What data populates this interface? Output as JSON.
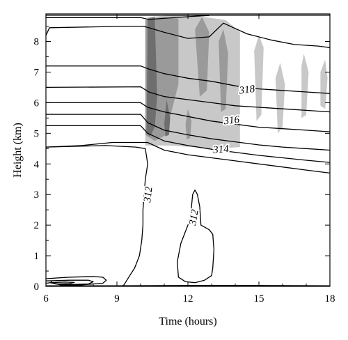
{
  "chart_data": {
    "type": "contour",
    "xlabel": "Time (hours)",
    "ylabel": "Height (km)",
    "xlim": [
      6,
      18
    ],
    "ylim": [
      0,
      8.9
    ],
    "xticks": [
      6,
      9,
      12,
      15,
      18
    ],
    "yticks": [
      0,
      1,
      2,
      3,
      4,
      5,
      6,
      7,
      8
    ],
    "colors": {
      "light_shade": "#c8c8c8",
      "mid_shade": "#9a9a9a",
      "dark_shade": "#6e6e6e",
      "line": "#000000"
    },
    "shaded_regions": [
      {
        "level": "light",
        "points": [
          [
            10.2,
            4.85
          ],
          [
            10.3,
            8.8
          ],
          [
            11.2,
            8.85
          ],
          [
            12.2,
            8.85
          ],
          [
            13.6,
            8.7
          ],
          [
            14.2,
            8.3
          ],
          [
            14.2,
            4.55
          ],
          [
            13.2,
            4.5
          ],
          [
            12.2,
            4.55
          ],
          [
            11.2,
            4.6
          ],
          [
            10.2,
            4.6
          ]
        ]
      },
      {
        "level": "light",
        "points": [
          [
            14.8,
            7.7
          ],
          [
            15.0,
            8.2
          ],
          [
            15.2,
            7.8
          ],
          [
            15.1,
            5.6
          ],
          [
            14.9,
            5.4
          ]
        ]
      },
      {
        "level": "light",
        "points": [
          [
            15.7,
            6.8
          ],
          [
            15.9,
            7.3
          ],
          [
            16.1,
            6.6
          ],
          [
            16.0,
            5.2
          ],
          [
            15.8,
            5.0
          ]
        ]
      },
      {
        "level": "light",
        "points": [
          [
            16.8,
            7.2
          ],
          [
            16.9,
            7.6
          ],
          [
            17.1,
            7.0
          ],
          [
            17.0,
            5.6
          ],
          [
            16.8,
            5.5
          ]
        ]
      },
      {
        "level": "light",
        "points": [
          [
            17.6,
            7.0
          ],
          [
            17.8,
            7.4
          ],
          [
            17.9,
            6.8
          ],
          [
            17.8,
            5.8
          ],
          [
            17.6,
            5.9
          ]
        ]
      },
      {
        "level": "mid",
        "points": [
          [
            10.2,
            4.95
          ],
          [
            10.2,
            8.7
          ],
          [
            10.9,
            8.8
          ],
          [
            11.6,
            8.75
          ],
          [
            11.6,
            6.6
          ],
          [
            11.2,
            5.4
          ],
          [
            11.1,
            4.95
          ],
          [
            10.6,
            4.75
          ]
        ]
      },
      {
        "level": "mid",
        "points": [
          [
            12.3,
            8.4
          ],
          [
            12.6,
            8.8
          ],
          [
            12.9,
            8.3
          ],
          [
            12.8,
            6.4
          ],
          [
            12.5,
            6.2
          ]
        ]
      },
      {
        "level": "mid",
        "points": [
          [
            13.3,
            8.0
          ],
          [
            13.5,
            8.4
          ],
          [
            13.7,
            7.6
          ],
          [
            13.6,
            5.8
          ],
          [
            13.4,
            5.7
          ]
        ]
      },
      {
        "level": "mid",
        "points": [
          [
            11.9,
            5.3
          ],
          [
            12.0,
            5.8
          ],
          [
            12.15,
            5.4
          ],
          [
            12.1,
            4.85
          ],
          [
            11.95,
            4.8
          ]
        ]
      },
      {
        "level": "dark",
        "points": [
          [
            10.25,
            5.0
          ],
          [
            10.3,
            8.75
          ],
          [
            10.6,
            8.8
          ],
          [
            10.7,
            6.2
          ],
          [
            10.6,
            5.2
          ],
          [
            10.4,
            4.9
          ]
        ]
      },
      {
        "level": "dark",
        "points": [
          [
            11.0,
            5.3
          ],
          [
            11.1,
            6.1
          ],
          [
            11.25,
            5.5
          ],
          [
            11.2,
            4.95
          ],
          [
            11.05,
            4.9
          ]
        ]
      }
    ],
    "contours": [
      {
        "label": "",
        "points": [
          [
            6,
            8.86
          ],
          [
            10.0,
            8.86
          ],
          [
            10.25,
            8.86
          ],
          [
            12.0,
            8.86
          ],
          [
            14.0,
            8.86
          ],
          [
            16.0,
            8.86
          ],
          [
            18,
            8.86
          ]
        ]
      },
      {
        "label": "",
        "points": [
          [
            6,
            8.78
          ],
          [
            10.0,
            8.78
          ],
          [
            10.35,
            8.72
          ],
          [
            12.2,
            8.82
          ],
          [
            12.9,
            8.85
          ]
        ]
      },
      {
        "label": "",
        "points": [
          [
            6,
            8.2
          ],
          [
            6.15,
            8.45
          ],
          [
            9.5,
            8.5
          ],
          [
            10.1,
            8.5
          ],
          [
            10.35,
            8.45
          ],
          [
            11.0,
            8.3
          ],
          [
            12.0,
            8.1
          ],
          [
            12.9,
            8.15
          ],
          [
            13.5,
            8.6
          ],
          [
            14.5,
            8.25
          ],
          [
            15.5,
            8.05
          ],
          [
            16.5,
            7.9
          ],
          [
            17.5,
            7.85
          ],
          [
            18,
            7.8
          ]
        ]
      },
      {
        "label": "",
        "points": [
          [
            6,
            7.2
          ],
          [
            10.0,
            7.2
          ],
          [
            10.35,
            7.1
          ],
          [
            11.0,
            6.95
          ],
          [
            12.0,
            6.8
          ],
          [
            13.0,
            6.7
          ],
          [
            14.0,
            6.55
          ],
          [
            15.0,
            6.45
          ],
          [
            16.0,
            6.4
          ],
          [
            17.0,
            6.35
          ],
          [
            18,
            6.3
          ]
        ]
      },
      {
        "label": "318",
        "points": [
          [
            6,
            6.5
          ],
          [
            10.0,
            6.52
          ],
          [
            10.35,
            6.35
          ],
          [
            11.0,
            6.2
          ],
          [
            12.0,
            6.1
          ],
          [
            13.0,
            6.0
          ],
          [
            14.0,
            5.9
          ],
          [
            15.0,
            5.85
          ],
          [
            16.0,
            5.8
          ],
          [
            17.0,
            5.75
          ],
          [
            18,
            5.7
          ]
        ]
      },
      {
        "label": "",
        "points": [
          [
            6,
            6.0
          ],
          [
            10.0,
            6.0
          ],
          [
            10.3,
            5.85
          ],
          [
            11.0,
            5.7
          ],
          [
            12.0,
            5.55
          ],
          [
            13.0,
            5.4
          ],
          [
            14.0,
            5.3
          ],
          [
            15.0,
            5.2
          ],
          [
            16.0,
            5.15
          ],
          [
            17.0,
            5.1
          ],
          [
            18,
            5.05
          ]
        ]
      },
      {
        "label": "316",
        "points": [
          [
            6,
            5.62
          ],
          [
            10.0,
            5.62
          ],
          [
            10.3,
            5.35
          ],
          [
            11.0,
            5.1
          ],
          [
            12.0,
            4.95
          ],
          [
            13.0,
            4.82
          ],
          [
            14.0,
            4.72
          ],
          [
            15.0,
            4.62
          ],
          [
            16.0,
            4.55
          ],
          [
            17.0,
            4.5
          ],
          [
            18,
            4.45
          ]
        ]
      },
      {
        "label": "314",
        "points": [
          [
            6,
            5.25
          ],
          [
            10.0,
            5.25
          ],
          [
            10.3,
            5.0
          ],
          [
            11.0,
            4.75
          ],
          [
            12.0,
            4.6
          ],
          [
            13.0,
            4.48
          ],
          [
            14.0,
            4.38
          ],
          [
            15.0,
            4.28
          ],
          [
            16.0,
            4.2
          ],
          [
            17.0,
            4.12
          ],
          [
            18,
            4.05
          ]
        ]
      },
      {
        "label": "",
        "points": [
          [
            6,
            4.55
          ],
          [
            7.5,
            4.6
          ],
          [
            8.8,
            4.7
          ],
          [
            9.4,
            4.7
          ],
          [
            10.3,
            4.7
          ],
          [
            11.0,
            4.45
          ],
          [
            12.0,
            4.3
          ],
          [
            13.0,
            4.2
          ],
          [
            14.0,
            4.1
          ],
          [
            15.0,
            4.0
          ],
          [
            16.0,
            3.9
          ],
          [
            17.0,
            3.8
          ],
          [
            18,
            3.7
          ]
        ]
      },
      {
        "label": "312",
        "points": [
          [
            6,
            4.55
          ],
          [
            8.5,
            4.6
          ],
          [
            9.8,
            4.55
          ],
          [
            10.2,
            4.5
          ],
          [
            10.3,
            4.0
          ],
          [
            10.2,
            3.5
          ],
          [
            10.15,
            3.0
          ],
          [
            10.1,
            2.5
          ],
          [
            10.1,
            2.0
          ],
          [
            10.05,
            1.5
          ],
          [
            9.95,
            1.0
          ],
          [
            9.75,
            0.6
          ],
          [
            9.5,
            0.3
          ],
          [
            9.3,
            0.05
          ],
          [
            9.2,
            0.0
          ]
        ]
      },
      {
        "label": "312",
        "points": [
          [
            12.3,
            3.15
          ],
          [
            12.4,
            3.0
          ],
          [
            12.5,
            2.6
          ],
          [
            12.55,
            2.0
          ],
          [
            12.9,
            1.85
          ],
          [
            13.05,
            1.7
          ],
          [
            13.1,
            1.2
          ],
          [
            13.05,
            0.6
          ],
          [
            13.0,
            0.35
          ],
          [
            12.7,
            0.2
          ],
          [
            12.3,
            0.12
          ],
          [
            11.9,
            0.15
          ],
          [
            11.6,
            0.3
          ],
          [
            11.55,
            0.8
          ],
          [
            11.7,
            1.4
          ],
          [
            11.9,
            1.8
          ],
          [
            12.1,
            2.2
          ],
          [
            12.15,
            2.6
          ],
          [
            12.2,
            3.0
          ],
          [
            12.3,
            3.15
          ]
        ]
      },
      {
        "label": "",
        "points": [
          [
            6,
            0.25
          ],
          [
            7.0,
            0.3
          ],
          [
            8.0,
            0.32
          ],
          [
            8.4,
            0.3
          ],
          [
            8.55,
            0.2
          ],
          [
            8.4,
            0.1
          ],
          [
            7.5,
            0.05
          ],
          [
            6.6,
            0.05
          ],
          [
            6.3,
            0.1
          ],
          [
            6.2,
            0.18
          ],
          [
            6,
            0.18
          ]
        ]
      },
      {
        "label": "",
        "points": [
          [
            6,
            0.18
          ],
          [
            7.0,
            0.2
          ],
          [
            7.8,
            0.2
          ],
          [
            8.0,
            0.15
          ],
          [
            7.8,
            0.08
          ],
          [
            7.0,
            0.06
          ],
          [
            6.4,
            0.08
          ],
          [
            6.2,
            0.12
          ],
          [
            6,
            0.1
          ]
        ]
      },
      {
        "label": "",
        "points": [
          [
            6.2,
            0.12
          ],
          [
            6.8,
            0.14
          ],
          [
            7.2,
            0.13
          ],
          [
            7.0,
            0.09
          ],
          [
            6.5,
            0.08
          ],
          [
            6.2,
            0.12
          ]
        ]
      },
      {
        "label": "",
        "points": [
          [
            6,
            0.02
          ],
          [
            9.0,
            0.02
          ],
          [
            12.0,
            0.03
          ],
          [
            15.0,
            0.03
          ],
          [
            18,
            0.02
          ]
        ]
      }
    ],
    "contour_labels": [
      {
        "text": "318",
        "x": 14.5,
        "y": 6.4,
        "angle": -7
      },
      {
        "text": "316",
        "x": 13.85,
        "y": 5.4,
        "angle": -6
      },
      {
        "text": "314",
        "x": 13.4,
        "y": 4.45,
        "angle": -5
      },
      {
        "text": "312",
        "x": 10.35,
        "y": 3.0,
        "angle": -84
      },
      {
        "text": "312",
        "x": 12.28,
        "y": 2.25,
        "angle": -80
      }
    ]
  }
}
